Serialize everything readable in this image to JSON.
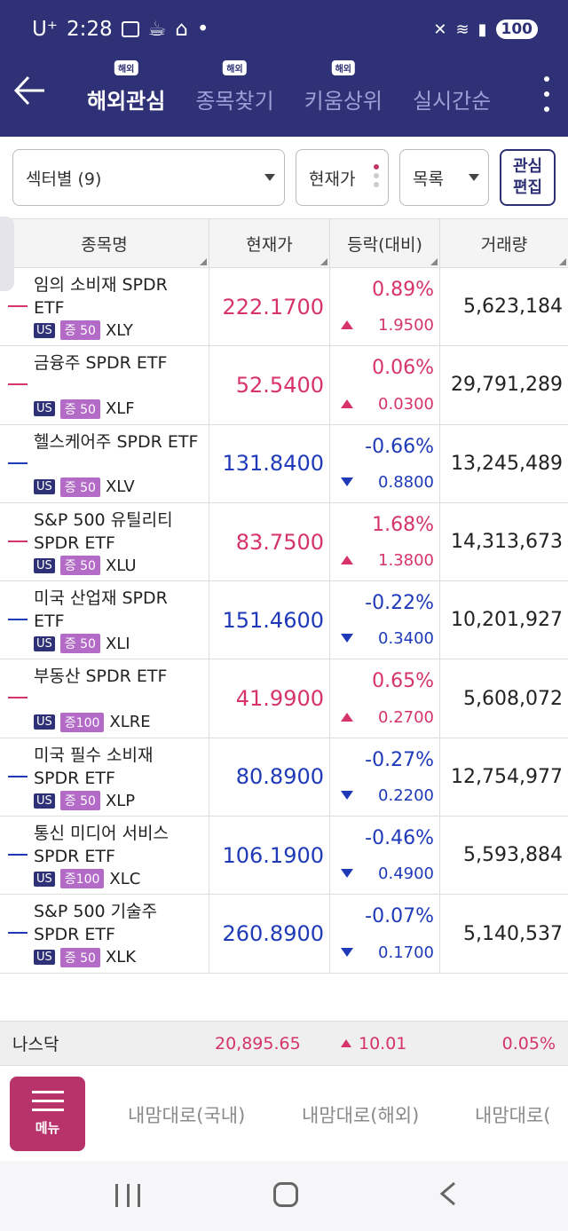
{
  "status_bar": {
    "carrier": "U⁺",
    "time": "2:28",
    "battery": "100"
  },
  "nav": {
    "back_icon": "arrow-left-icon",
    "tabs": [
      {
        "label": "해외관심",
        "badge": "해외",
        "active": true
      },
      {
        "label": "종목찾기",
        "badge": "해외",
        "active": false
      },
      {
        "label": "키움상위",
        "badge": "해외",
        "active": false
      },
      {
        "label": "실시간순",
        "badge": "",
        "active": false
      }
    ]
  },
  "filters": {
    "sector_dropdown": "섹터별 (9)",
    "price_dropdown": "현재가",
    "view_dropdown": "목록",
    "edit_button_line1": "관심",
    "edit_button_line2": "편집"
  },
  "table": {
    "headers": [
      "종목명",
      "현재가",
      "등락(대비)",
      "거래량"
    ],
    "rows": [
      {
        "name": "임의 소비재 SPDR ETF",
        "market": "US",
        "margin": "증 50",
        "ticker": "XLY",
        "price": "222.1700",
        "pct": "0.89%",
        "diff": "1.9500",
        "dir": "up",
        "volume": "5,623,184"
      },
      {
        "name": "금융주 SPDR ETF",
        "market": "US",
        "margin": "증 50",
        "ticker": "XLF",
        "price": "52.5400",
        "pct": "0.06%",
        "diff": "0.0300",
        "dir": "up",
        "volume": "29,791,289"
      },
      {
        "name": "헬스케어주 SPDR ETF",
        "market": "US",
        "margin": "증 50",
        "ticker": "XLV",
        "price": "131.8400",
        "pct": "-0.66%",
        "diff": "0.8800",
        "dir": "down",
        "volume": "13,245,489"
      },
      {
        "name": "S&P 500 유틸리티 SPDR ETF",
        "market": "US",
        "margin": "증 50",
        "ticker": "XLU",
        "price": "83.7500",
        "pct": "1.68%",
        "diff": "1.3800",
        "dir": "up",
        "volume": "14,313,673"
      },
      {
        "name": "미국 산업재 SPDR ETF",
        "market": "US",
        "margin": "증 50",
        "ticker": "XLI",
        "price": "151.4600",
        "pct": "-0.22%",
        "diff": "0.3400",
        "dir": "down",
        "volume": "10,201,927"
      },
      {
        "name": "부동산 SPDR ETF",
        "market": "US",
        "margin": "증100",
        "ticker": "XLRE",
        "price": "41.9900",
        "pct": "0.65%",
        "diff": "0.2700",
        "dir": "up",
        "volume": "5,608,072"
      },
      {
        "name": "미국 필수 소비재 SPDR ETF",
        "market": "US",
        "margin": "증 50",
        "ticker": "XLP",
        "price": "80.8900",
        "pct": "-0.27%",
        "diff": "0.2200",
        "dir": "down",
        "volume": "12,754,977"
      },
      {
        "name": "통신 미디어 서비스 SPDR ETF",
        "market": "US",
        "margin": "증100",
        "ticker": "XLC",
        "price": "106.1900",
        "pct": "-0.46%",
        "diff": "0.4900",
        "dir": "down",
        "volume": "5,593,884"
      },
      {
        "name": "S&P 500 기술주 SPDR ETF",
        "market": "US",
        "margin": "증 50",
        "ticker": "XLK",
        "price": "260.8900",
        "pct": "-0.07%",
        "diff": "0.1700",
        "dir": "down",
        "volume": "5,140,537"
      }
    ]
  },
  "index_bar": {
    "name": "나스닥",
    "value": "20,895.65",
    "change": "10.01",
    "pct": "0.05%"
  },
  "bottom": {
    "menu_label": "메뉴",
    "shortcuts": [
      "내맘대로(국내)",
      "내맘대로(해외)",
      "내맘대로("
    ]
  },
  "colors": {
    "brand": "#2e3175",
    "up": "#d6336c",
    "down": "#1e3ab8",
    "menu": "#b8336a"
  }
}
